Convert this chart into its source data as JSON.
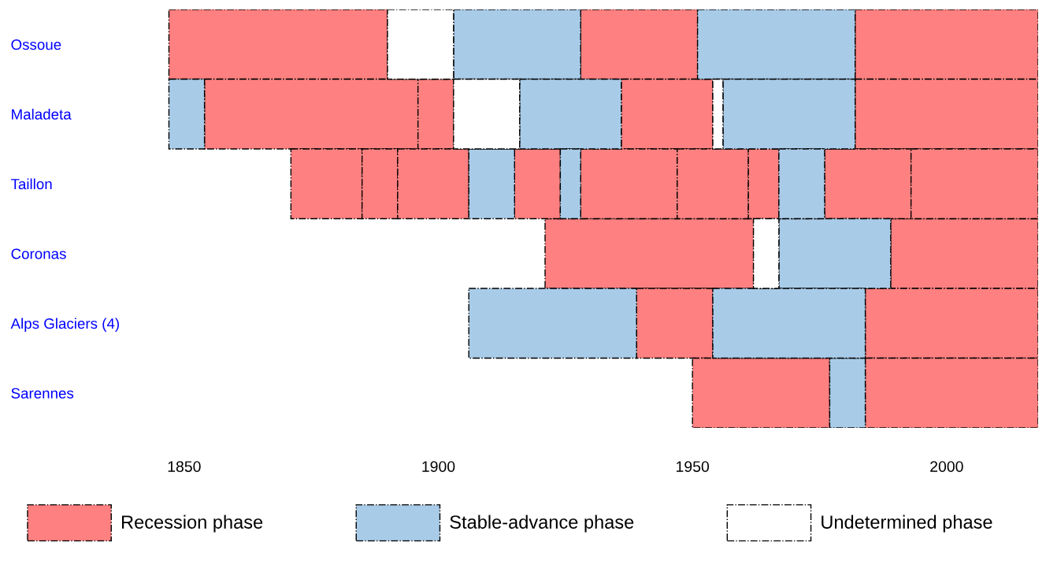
{
  "chart_data": {
    "type": "bar",
    "orientation": "horizontal",
    "categories": [
      "Ossoue",
      "Maladeta",
      "Taillon",
      "Coronas",
      "Alps Glaciers (4)",
      "Sarennes"
    ],
    "xlim": [
      1846,
      2018
    ],
    "xticks": [
      1850,
      1900,
      1950,
      2000
    ],
    "grid": false,
    "legend": "bottom left",
    "series": [
      {
        "name": "Recession phase",
        "color": "#ff8080",
        "base": [
          1847,
          1854,
          1871,
          1921,
          1939,
          1950
        ],
        "values": [
          43,
          42,
          14,
          41,
          15,
          27
        ]
      },
      {
        "color": "#ff8080",
        "base": [
          1928,
          1896,
          1885,
          1989,
          1984,
          1984
        ],
        "values": [
          23,
          7,
          7,
          29,
          34,
          34
        ]
      },
      {
        "color": "#ff8080",
        "base": [
          1982,
          1936,
          1892,
          null,
          null,
          null
        ],
        "values": [
          36,
          18,
          14,
          null,
          null,
          null
        ]
      },
      {
        "color": "#ff8080",
        "base": [
          null,
          1982,
          1915,
          null,
          null,
          null
        ],
        "values": [
          null,
          36,
          9,
          null,
          null,
          null
        ]
      },
      {
        "color": "#ff8080",
        "base": [
          null,
          null,
          1928,
          null,
          null,
          null
        ],
        "values": [
          null,
          null,
          19,
          null,
          null,
          null
        ]
      },
      {
        "color": "#ff8080",
        "base": [
          null,
          null,
          1947,
          null,
          null,
          null
        ],
        "values": [
          null,
          null,
          14,
          null,
          null,
          null
        ]
      },
      {
        "color": "#ff8080",
        "base": [
          null,
          null,
          1961,
          null,
          null,
          null
        ],
        "values": [
          null,
          null,
          6,
          null,
          null,
          null
        ]
      },
      {
        "color": "#ff8080",
        "base": [
          null,
          null,
          1976,
          null,
          null,
          null
        ],
        "values": [
          null,
          null,
          17,
          null,
          null,
          null
        ]
      },
      {
        "color": "#ff8080",
        "base": [
          null,
          null,
          1993,
          null,
          null,
          null
        ],
        "values": [
          null,
          null,
          25,
          null,
          null,
          null
        ]
      },
      {
        "name": "Stable-advance phase",
        "color": "#a8cbe8",
        "base": [
          1903,
          1847,
          1906,
          1967,
          1906,
          1977
        ],
        "values": [
          25,
          7,
          9,
          22,
          33,
          7
        ]
      },
      {
        "color": "#a8cbe8",
        "base": [
          1951,
          1916,
          1924,
          null,
          1954,
          null
        ],
        "values": [
          31,
          20,
          4,
          null,
          30,
          null
        ]
      },
      {
        "color": "#a8cbe8",
        "base": [
          null,
          1956,
          1967,
          null,
          null,
          null
        ],
        "values": [
          null,
          26,
          9,
          null,
          null,
          null
        ]
      },
      {
        "name": "Undetermined phase",
        "color": "#ffffff",
        "base": [
          1890,
          1903,
          null,
          1962,
          null,
          null
        ],
        "values": [
          13,
          13,
          null,
          5,
          null,
          null
        ]
      },
      {
        "color": "#ffffff",
        "base": [
          null,
          1954,
          null,
          null,
          null,
          null
        ],
        "values": [
          null,
          2,
          null,
          null,
          null,
          null
        ]
      }
    ]
  }
}
